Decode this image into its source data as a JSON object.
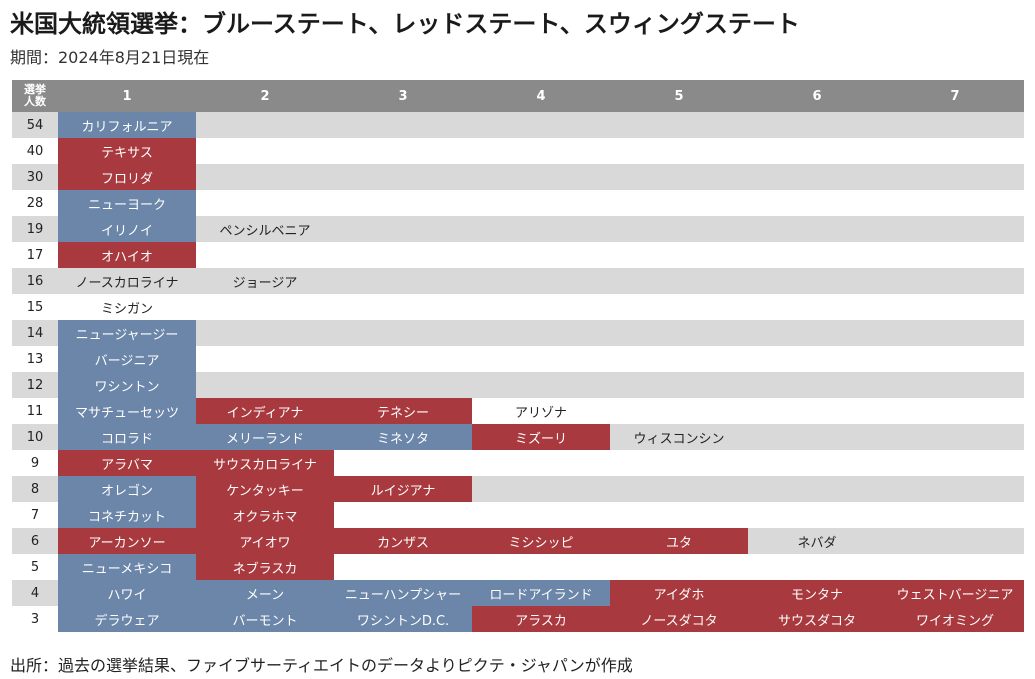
{
  "title": "米国大統領選挙：ブルーステート、レッドステート、スウィングステート",
  "subtitle": "期間：2024年8月21日現在",
  "footer": "出所：過去の選挙結果、ファイブサーティエイトのデータよりピクテ・ジャパンが作成",
  "colors": {
    "blue": "#6b86a8",
    "red": "#a83a3f",
    "header": "#8a8a8a",
    "shade": "#d9d9d9"
  },
  "chart_data": {
    "type": "table",
    "corner_label_line1": "選挙",
    "corner_label_line2": "人数",
    "columns": [
      "1",
      "2",
      "3",
      "4",
      "5",
      "6",
      "7"
    ],
    "rows": [
      {
        "votes": "54",
        "states": [
          {
            "name": "カリフォルニア",
            "party": "blue"
          }
        ]
      },
      {
        "votes": "40",
        "states": [
          {
            "name": "テキサス",
            "party": "red"
          }
        ]
      },
      {
        "votes": "30",
        "states": [
          {
            "name": "フロリダ",
            "party": "red"
          }
        ]
      },
      {
        "votes": "28",
        "states": [
          {
            "name": "ニューヨーク",
            "party": "blue"
          }
        ]
      },
      {
        "votes": "19",
        "states": [
          {
            "name": "イリノイ",
            "party": "blue"
          },
          {
            "name": "ペンシルベニア",
            "party": "swing"
          }
        ]
      },
      {
        "votes": "17",
        "states": [
          {
            "name": "オハイオ",
            "party": "red"
          }
        ]
      },
      {
        "votes": "16",
        "states": [
          {
            "name": "ノースカロライナ",
            "party": "swing"
          },
          {
            "name": "ジョージア",
            "party": "swing"
          }
        ]
      },
      {
        "votes": "15",
        "states": [
          {
            "name": "ミシガン",
            "party": "swing"
          }
        ]
      },
      {
        "votes": "14",
        "states": [
          {
            "name": "ニュージャージー",
            "party": "blue"
          }
        ]
      },
      {
        "votes": "13",
        "states": [
          {
            "name": "バージニア",
            "party": "blue"
          }
        ]
      },
      {
        "votes": "12",
        "states": [
          {
            "name": "ワシントン",
            "party": "blue"
          }
        ]
      },
      {
        "votes": "11",
        "states": [
          {
            "name": "マサチューセッツ",
            "party": "blue"
          },
          {
            "name": "インディアナ",
            "party": "red"
          },
          {
            "name": "テネシー",
            "party": "red"
          },
          {
            "name": "アリゾナ",
            "party": "swing"
          }
        ]
      },
      {
        "votes": "10",
        "states": [
          {
            "name": "コロラド",
            "party": "blue"
          },
          {
            "name": "メリーランド",
            "party": "blue"
          },
          {
            "name": "ミネソタ",
            "party": "blue"
          },
          {
            "name": "ミズーリ",
            "party": "red"
          },
          {
            "name": "ウィスコンシン",
            "party": "swing"
          }
        ]
      },
      {
        "votes": "9",
        "states": [
          {
            "name": "アラバマ",
            "party": "red"
          },
          {
            "name": "サウスカロライナ",
            "party": "red"
          }
        ]
      },
      {
        "votes": "8",
        "states": [
          {
            "name": "オレゴン",
            "party": "blue"
          },
          {
            "name": "ケンタッキー",
            "party": "red"
          },
          {
            "name": "ルイジアナ",
            "party": "red"
          }
        ]
      },
      {
        "votes": "7",
        "states": [
          {
            "name": "コネチカット",
            "party": "blue"
          },
          {
            "name": "オクラホマ",
            "party": "red"
          }
        ]
      },
      {
        "votes": "6",
        "states": [
          {
            "name": "アーカンソー",
            "party": "red"
          },
          {
            "name": "アイオワ",
            "party": "red"
          },
          {
            "name": "カンザス",
            "party": "red"
          },
          {
            "name": "ミシシッピ",
            "party": "red"
          },
          {
            "name": "ユタ",
            "party": "red"
          },
          {
            "name": "ネバダ",
            "party": "swing"
          }
        ]
      },
      {
        "votes": "5",
        "states": [
          {
            "name": "ニューメキシコ",
            "party": "blue"
          },
          {
            "name": "ネブラスカ",
            "party": "red"
          }
        ]
      },
      {
        "votes": "4",
        "states": [
          {
            "name": "ハワイ",
            "party": "blue"
          },
          {
            "name": "メーン",
            "party": "blue"
          },
          {
            "name": "ニューハンプシャー",
            "party": "blue"
          },
          {
            "name": "ロードアイランド",
            "party": "blue"
          },
          {
            "name": "アイダホ",
            "party": "red"
          },
          {
            "name": "モンタナ",
            "party": "red"
          },
          {
            "name": "ウェストバージニア",
            "party": "red"
          }
        ]
      },
      {
        "votes": "3",
        "states": [
          {
            "name": "デラウェア",
            "party": "blue"
          },
          {
            "name": "バーモント",
            "party": "blue"
          },
          {
            "name": "ワシントンD.C.",
            "party": "blue"
          },
          {
            "name": "アラスカ",
            "party": "red"
          },
          {
            "name": "ノースダコタ",
            "party": "red"
          },
          {
            "name": "サウスダコタ",
            "party": "red"
          },
          {
            "name": "ワイオミング",
            "party": "red"
          }
        ]
      }
    ]
  }
}
